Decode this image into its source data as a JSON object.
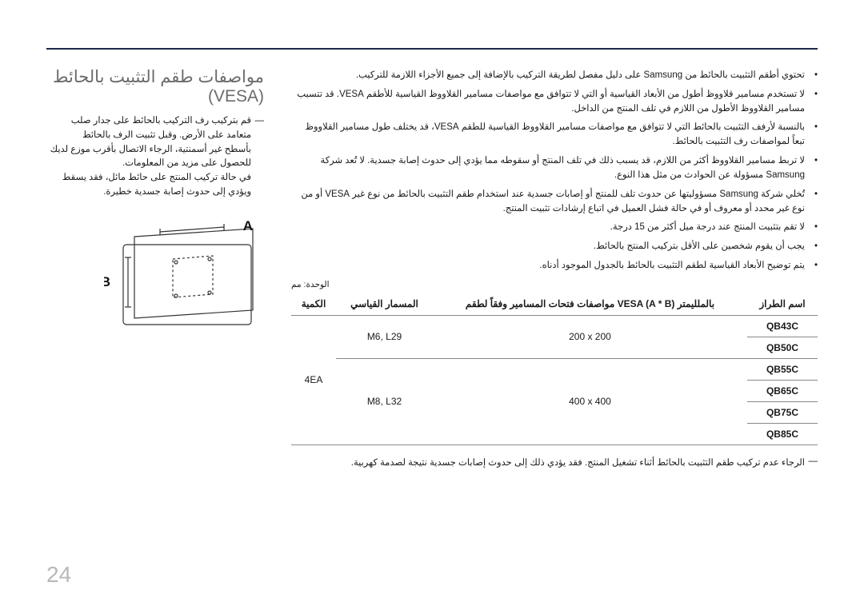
{
  "heading": "مواصفات طقم التثبيت بالحائط (VESA)",
  "intro_lines": [
    "قم بتركيب رف التركيب بالحائط على جدار صلب متعامد على الأرض. وقبل تثبيت الرف بالحائط",
    "بأسطح غير أسمنتية، الرجاء الاتصال بأقرب موزع لديك للحصول على مزيد من المعلومات.",
    "في حالة تركيب المنتج على حائط مائل، فقد يسقط ويؤدي إلى حدوث إصابة جسدية خطيرة."
  ],
  "bullets": [
    "تحتوي أطقم التثبيت بالحائط من Samsung على دليل مفصل لطريقة التركيب بالإضافة إلى جميع الأجزاء اللازمة للتركيب.",
    "لا تستخدم مسامير قلاووظ أطول من الأبعاد القياسية أو التي لا تتوافق مع مواصفات مسامير القلاووظ القياسية للأطقم VESA. قد تتسبب مسامير القلاووظ الأطول من اللازم في تلف المنتج من الداخل.",
    "بالنسبة لأرفف التثبيت بالحائط التي لا تتوافق مع مواصفات مسامير القلاووظ القياسية للطقم VESA، قد يختلف طول مسامير القلاووظ تبعاً لمواصفات رف التثبيت بالحائط.",
    "لا تربط مسامير القلاووظ أكثر من اللازم، قد يسبب ذلك في تلف المنتج أو سقوطه مما يؤدي إلى حدوث إصابة جسدية. لا تُعد شركة Samsung مسؤولة عن الحوادث من مثل هذا النوع.",
    "تُخلي شركة Samsung مسؤوليتها عن حدوث تلف للمنتج أو إصابات جسدية عند استخدام طقم التثبيت بالحائط من نوع غير VESA أو من نوع غير محدد أو معروف أو في حالة فشل العميل في اتباع إرشادات تثبيت المنتج.",
    "لا تقم بتثبيت المنتج عند درجة ميل أكثر من 15 درجة.",
    "يجب أن يقوم شخصين على الأقل بتركيب المنتج بالحائط.",
    "يتم توضيح الأبعاد القياسية لطقم التثبيت بالحائط بالجدول الموجود أدناه."
  ],
  "unit_note": "الوحدة: مم",
  "table": {
    "headers": [
      "اسم الطراز",
      "مواصفات فتحات المسامير وفقاً لطقم VESA (A * B) بالملليمتر",
      "المسمار القياسي",
      "الكمية"
    ],
    "rows": [
      {
        "model": "QB43C\nQB50C",
        "dims": "200 x 200",
        "screw": "M6, L29",
        "qty": "4EA"
      },
      {
        "model": "QB55C\nQB65C\nQB75C\nQB85C",
        "dims": "400 x 400",
        "screw": "M8, L32",
        "qty": ""
      }
    ]
  },
  "footer_note": "الرجاء عدم تركيب طقم التثبيت بالحائط أثناء تشغيل المنتج. فقد يؤدي ذلك إلى حدوث إصابات جسدية نتيجة لصدمة كهربية.",
  "page_number": "24",
  "diagram": {
    "label_a": "A",
    "label_b": "B"
  },
  "colors": {
    "rule": "#1b2a4a",
    "heading": "#6b6b6b",
    "text": "#1a1a1a",
    "border": "#888888",
    "pagenum": "#b8b8b8"
  }
}
